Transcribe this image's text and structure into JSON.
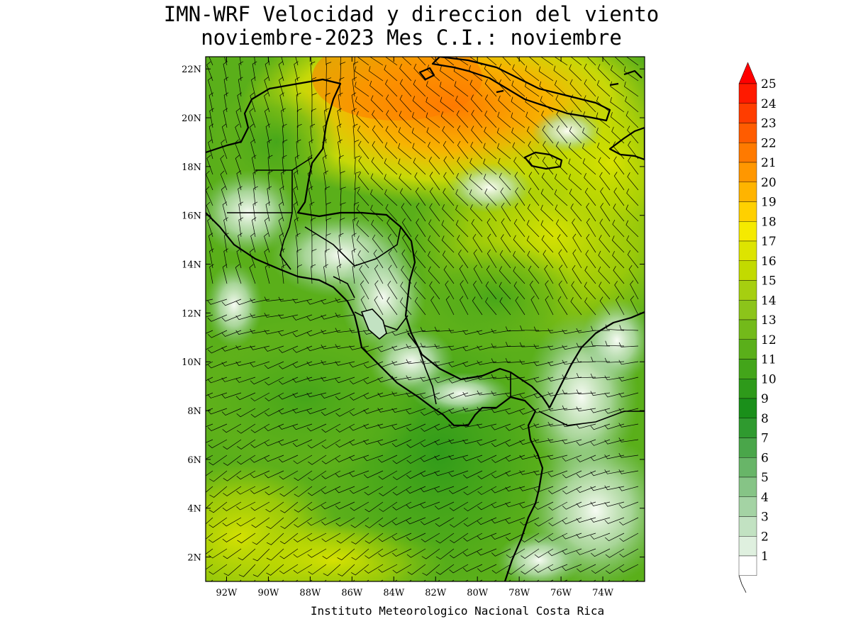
{
  "title": {
    "line1": "IMN-WRF Velocidad y direccion del viento",
    "line2": "noviembre-2023 Mes C.I.: noviembre"
  },
  "credit": "Instituto Meteorologico Nacional Costa Rica",
  "axes": {
    "lon_labels": [
      "92W",
      "90W",
      "88W",
      "86W",
      "84W",
      "82W",
      "80W",
      "78W",
      "76W",
      "74W"
    ],
    "lon_values": [
      -92,
      -90,
      -88,
      -86,
      -84,
      -82,
      -80,
      -78,
      -76,
      -74
    ],
    "lat_labels": [
      "22N",
      "20N",
      "18N",
      "16N",
      "14N",
      "12N",
      "10N",
      "8N",
      "6N",
      "4N",
      "2N"
    ],
    "lat_values": [
      22,
      20,
      18,
      16,
      14,
      12,
      10,
      8,
      6,
      4,
      2
    ],
    "lon_range": [
      -93.0,
      -72.0
    ],
    "lat_range": [
      1.0,
      22.5
    ]
  },
  "colorbar": {
    "labels": [
      "1",
      "2",
      "3",
      "4",
      "5",
      "6",
      "7",
      "8",
      "9",
      "10",
      "11",
      "12",
      "13",
      "14",
      "15",
      "16",
      "17",
      "18",
      "19",
      "20",
      "21",
      "22",
      "23",
      "24",
      "25"
    ],
    "colors": [
      "#ffffff",
      "#dff0df",
      "#c2e2c2",
      "#a4d3a4",
      "#86c486",
      "#68b568",
      "#4aa64a",
      "#2f9a2f",
      "#1a8f1a",
      "#2e9a1a",
      "#43a51a",
      "#5aaf1a",
      "#73ba1a",
      "#8cc41a",
      "#a6cf10",
      "#c2da00",
      "#dde400",
      "#f5ea00",
      "#ffd000",
      "#ffb400",
      "#ff9700",
      "#ff7a00",
      "#ff5c00",
      "#ff3d00",
      "#ff1a00"
    ],
    "arrow_color": "#ff0000"
  }
}
